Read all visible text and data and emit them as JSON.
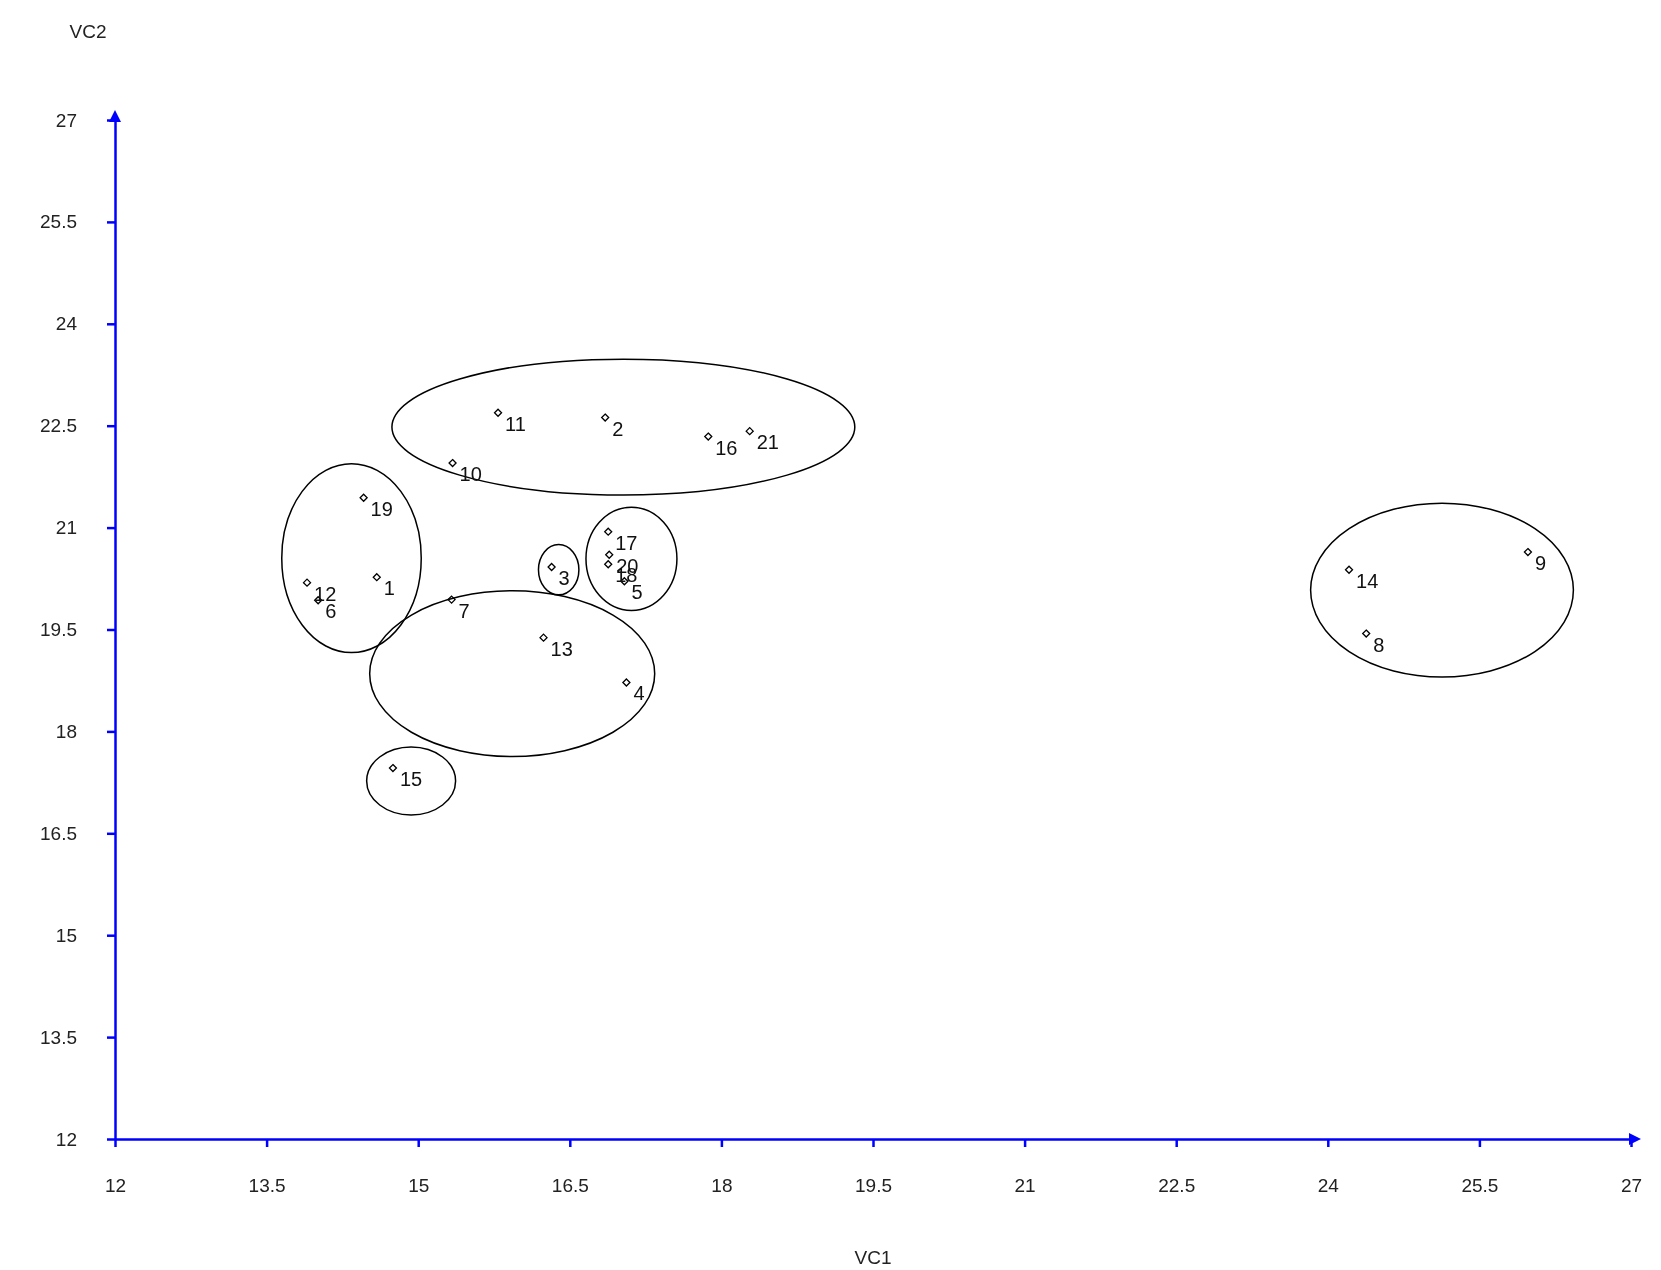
{
  "chart_data": {
    "type": "scatter",
    "xlabel": "VC1",
    "ylabel": "VC2",
    "xlim": [
      12,
      27
    ],
    "ylim": [
      12,
      27
    ],
    "xticks": [
      12,
      13.5,
      15,
      16.5,
      18,
      19.5,
      21,
      22.5,
      24,
      25.5,
      27
    ],
    "yticks": [
      12,
      13.5,
      15,
      16.5,
      18,
      19.5,
      21,
      22.5,
      24,
      25.5,
      27
    ],
    "grid": false,
    "marker": "diamond",
    "series": [
      {
        "color": "#000000",
        "x": [
          14.59,
          16.85,
          16.32,
          17.06,
          17.04,
          14.01,
          15.33,
          24.38,
          25.98,
          15.34,
          15.79,
          13.9,
          16.24,
          24.21,
          14.75,
          17.87,
          16.88,
          16.88,
          14.46,
          16.89,
          18.28
        ],
        "values": [
          20.27,
          22.62,
          20.42,
          18.72,
          20.21,
          19.93,
          19.94,
          19.44,
          20.64,
          21.95,
          22.69,
          20.19,
          19.38,
          20.38,
          17.46,
          22.34,
          20.94,
          20.46,
          21.44,
          20.6,
          22.42
        ]
      }
    ],
    "annotations": [
      {
        "text": "1",
        "x": 14.59,
        "y": 20.27
      },
      {
        "text": "2",
        "x": 16.85,
        "y": 22.62
      },
      {
        "text": "3",
        "x": 16.32,
        "y": 20.42
      },
      {
        "text": "4",
        "x": 17.06,
        "y": 18.72
      },
      {
        "text": "5",
        "x": 17.04,
        "y": 20.21
      },
      {
        "text": "6",
        "x": 14.01,
        "y": 19.93
      },
      {
        "text": "7",
        "x": 15.33,
        "y": 19.94
      },
      {
        "text": "8",
        "x": 24.38,
        "y": 19.44
      },
      {
        "text": "9",
        "x": 25.98,
        "y": 20.64
      },
      {
        "text": "10",
        "x": 15.34,
        "y": 21.95
      },
      {
        "text": "11",
        "x": 15.79,
        "y": 22.69
      },
      {
        "text": "12",
        "x": 13.9,
        "y": 20.19
      },
      {
        "text": "13",
        "x": 16.24,
        "y": 19.38
      },
      {
        "text": "14",
        "x": 24.21,
        "y": 20.38
      },
      {
        "text": "15",
        "x": 14.75,
        "y": 17.46
      },
      {
        "text": "16",
        "x": 17.87,
        "y": 22.34
      },
      {
        "text": "17",
        "x": 16.88,
        "y": 20.94
      },
      {
        "text": "18",
        "x": 16.88,
        "y": 20.46
      },
      {
        "text": "19",
        "x": 14.46,
        "y": 21.44
      },
      {
        "text": "20",
        "x": 16.89,
        "y": 20.6
      },
      {
        "text": "21",
        "x": 18.28,
        "y": 22.42
      }
    ]
  }
}
